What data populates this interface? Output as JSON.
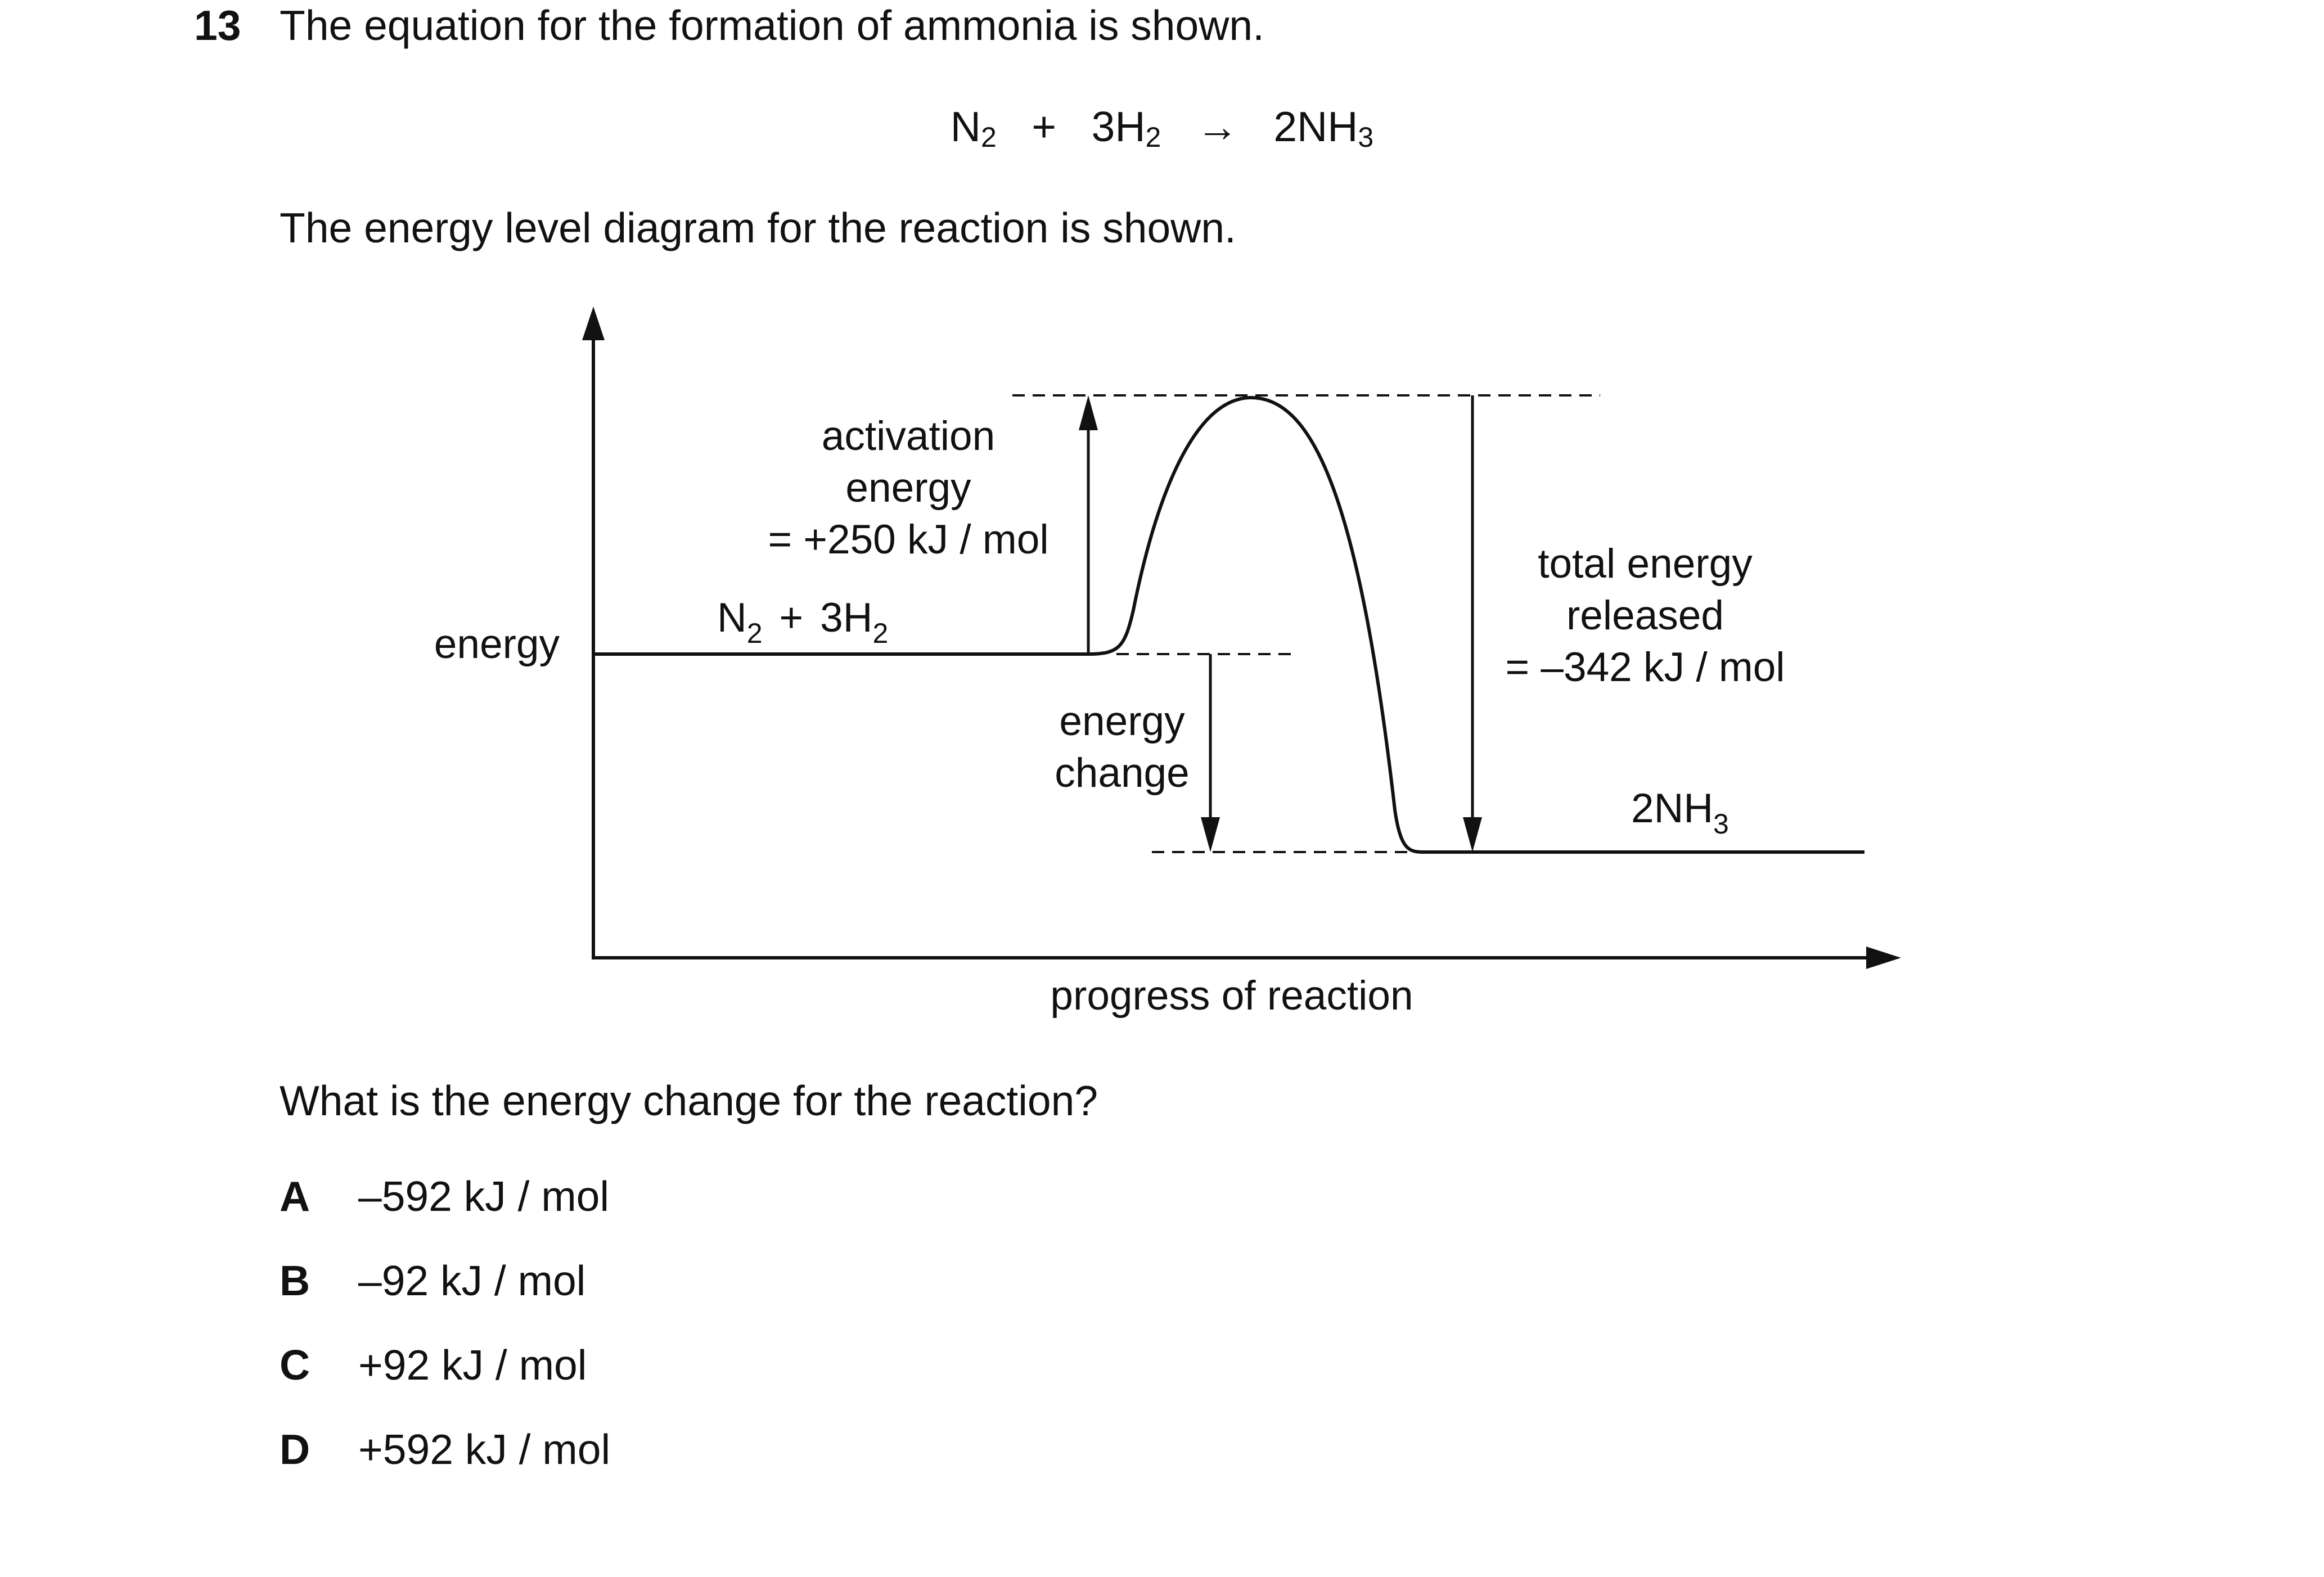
{
  "question": {
    "number": "13",
    "text": "The equation for the formation of ammonia is shown.",
    "equation": {
      "reactant1": "N",
      "reactant1_sub": "2",
      "plus": "+",
      "reactant2": "3H",
      "reactant2_sub": "2",
      "arrow": "→",
      "product": "2NH",
      "product_sub": "3"
    },
    "intro": "The energy level diagram for the reaction is shown.",
    "prompt": "What is the energy change for the reaction?"
  },
  "diagram": {
    "y_axis_label": "energy",
    "x_axis_label": "progress of reaction",
    "reactants": {
      "main": "N",
      "sub1": "2",
      "plus": "+",
      "coeff": "3H",
      "sub2": "2"
    },
    "products": {
      "main": "2NH",
      "sub": "3"
    },
    "activation_energy": {
      "line1": "activation",
      "line2": "energy",
      "line3": "= +250 kJ / mol",
      "value_kj_per_mol": 250
    },
    "energy_change_label": {
      "line1": "energy",
      "line2": "change"
    },
    "total_energy_released": {
      "line1": "total energy",
      "line2": "released",
      "line3": "= –342 kJ / mol",
      "value_kj_per_mol": -342
    }
  },
  "options": [
    {
      "letter": "A",
      "text": "–592 kJ / mol"
    },
    {
      "letter": "B",
      "text": "–92 kJ / mol"
    },
    {
      "letter": "C",
      "text": "+92 kJ / mol"
    },
    {
      "letter": "D",
      "text": "+592 kJ / mol"
    }
  ]
}
